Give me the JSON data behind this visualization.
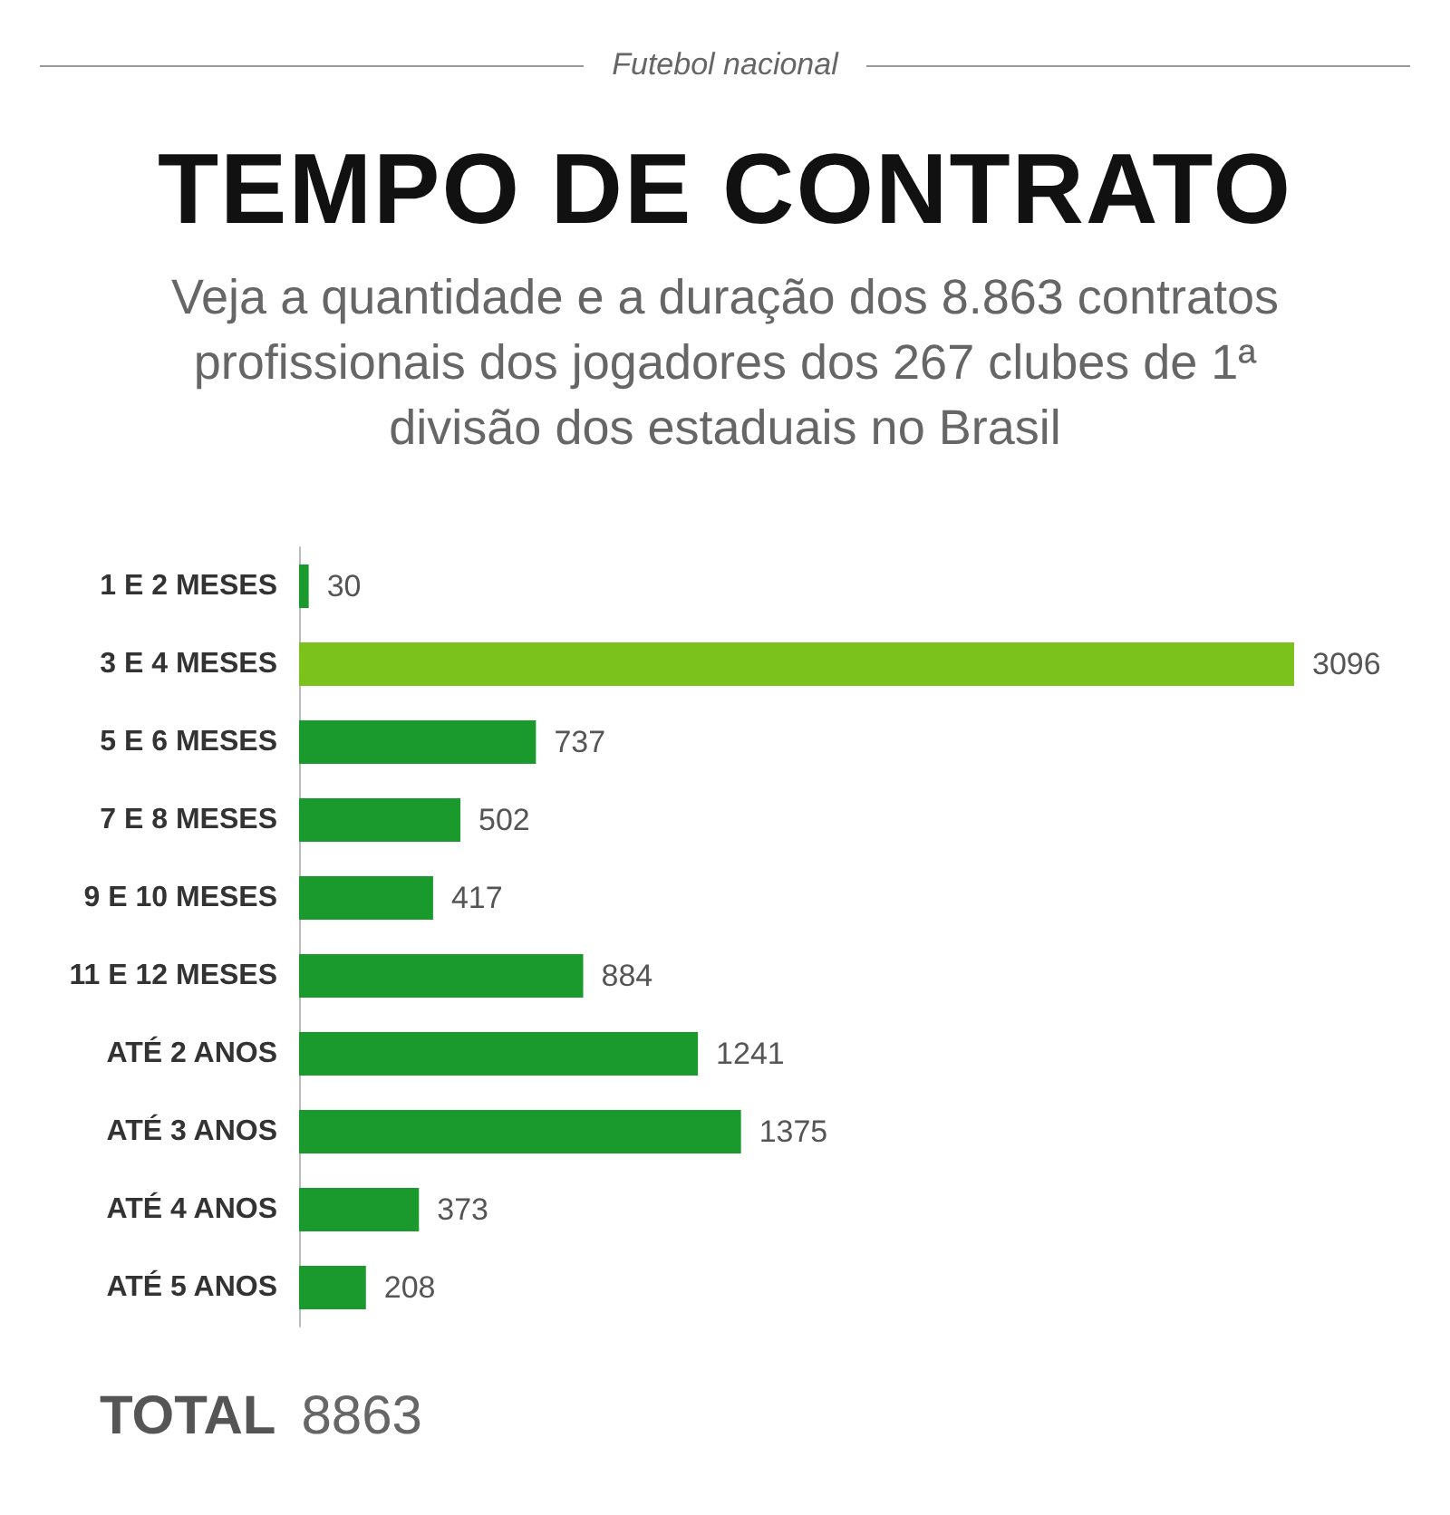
{
  "chart_data": {
    "type": "bar",
    "orientation": "horizontal",
    "title": "TEMPO DE CONTRATO",
    "subtitle": "Veja a quantidade e a duração dos 8.863 contratos profissionais dos jogadores dos 267 clubes de 1ª divisão dos estaduais no Brasil",
    "categories": [
      "1 E 2 MESES",
      "3 E 4 MESES",
      "5 E 6 MESES",
      "7 E 8 MESES",
      "9 E 10 MESES",
      "11 E 12 MESES",
      "ATÉ 2 ANOS",
      "ATÉ 3 ANOS",
      "ATÉ 4 ANOS",
      "ATÉ 5 ANOS"
    ],
    "values": [
      30,
      3096,
      737,
      502,
      417,
      884,
      1241,
      1375,
      373,
      208
    ],
    "colors": [
      "#1a9a2c",
      "#7cc21c",
      "#1a9a2c",
      "#1a9a2c",
      "#1a9a2c",
      "#1a9a2c",
      "#1a9a2c",
      "#1a9a2c",
      "#1a9a2c",
      "#1a9a2c"
    ],
    "data_labels": true,
    "annotations": [
      "Futebol nacional",
      "TOTAL",
      "8863"
    ]
  }
}
